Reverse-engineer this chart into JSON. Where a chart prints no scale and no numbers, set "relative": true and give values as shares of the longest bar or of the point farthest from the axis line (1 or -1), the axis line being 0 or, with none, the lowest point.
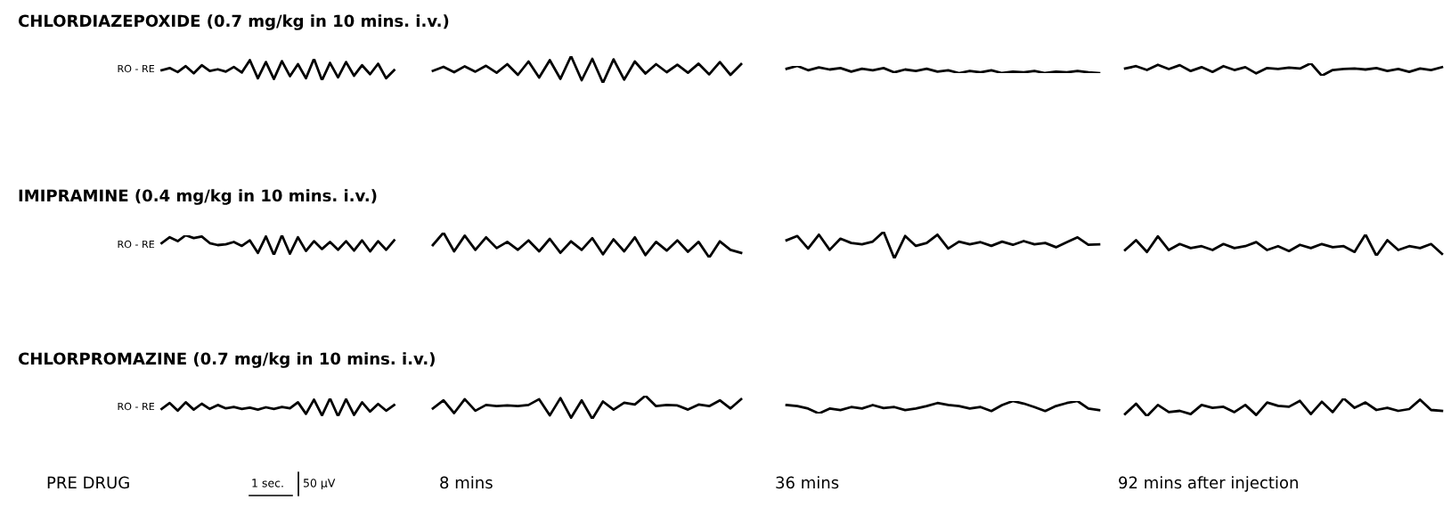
{
  "chart_data": [
    {
      "type": "line",
      "title": "CHLORDIAZEPOXIDE (0.7 mg/kg in 10 mins. i.v.)",
      "relative": true,
      "line_style": "solid",
      "annotations": [
        "RO - RE"
      ],
      "categories": [
        null,
        null,
        null,
        null,
        null,
        null,
        null,
        null,
        null,
        null,
        null,
        null,
        null,
        null,
        null,
        null,
        null,
        null,
        null,
        null,
        null,
        null,
        null,
        null,
        null,
        null,
        null,
        null,
        null,
        null
      ],
      "series": [
        {
          "color": "#000000",
          "values": [
            0.47,
            0.57,
            0.38,
            0.66,
            0.32,
            0.7,
            0.43,
            0.51,
            0.4,
            0.62,
            0.36,
            0.94,
            0.09,
            0.85,
            0.06,
            0.89,
            0.19,
            0.75,
            0.09,
            1.0,
            0.0,
            0.81,
            0.13,
            0.85,
            0.21,
            0.7,
            0.28,
            0.77,
            0.09,
            0.47
          ]
        }
      ]
    },
    {
      "type": "line",
      "relative": true,
      "line_style": "solid",
      "categories": [
        null,
        null,
        null,
        null,
        null,
        null,
        null,
        null,
        null,
        null,
        null,
        null,
        null,
        null,
        null,
        null,
        null,
        null,
        null,
        null,
        null,
        null,
        null,
        null,
        null,
        null,
        null,
        null,
        null,
        null
      ],
      "series": [
        {
          "color": "#000000",
          "values": [
            0.45,
            0.6,
            0.4,
            0.62,
            0.42,
            0.64,
            0.38,
            0.7,
            0.3,
            0.8,
            0.2,
            0.85,
            0.15,
            1.0,
            0.1,
            0.9,
            0.0,
            0.88,
            0.12,
            0.8,
            0.35,
            0.7,
            0.4,
            0.68,
            0.38,
            0.72,
            0.32,
            0.78,
            0.3,
            0.7
          ]
        }
      ]
    },
    {
      "type": "line",
      "relative": true,
      "line_style": "solid",
      "categories": [
        null,
        null,
        null,
        null,
        null,
        null,
        null,
        null,
        null,
        null,
        null,
        null,
        null,
        null,
        null,
        null,
        null,
        null,
        null,
        null,
        null,
        null,
        null,
        null,
        null,
        null,
        null,
        null,
        null,
        null
      ],
      "series": [
        {
          "color": "#000000",
          "values": [
            0.6,
            1.0,
            0.4,
            0.8,
            0.5,
            0.7,
            0.2,
            0.6,
            0.4,
            0.7,
            0.1,
            0.5,
            0.3,
            0.6,
            0.2,
            0.4,
            0.0,
            0.3,
            0.1,
            0.4,
            0.0,
            0.2,
            0.1,
            0.3,
            0.0,
            0.2,
            0.1,
            0.3,
            0.1,
            0.0
          ]
        }
      ]
    },
    {
      "type": "line",
      "relative": true,
      "line_style": "solid",
      "categories": [
        null,
        null,
        null,
        null,
        null,
        null,
        null,
        null,
        null,
        null,
        null,
        null,
        null,
        null,
        null,
        null,
        null,
        null,
        null,
        null,
        null,
        null,
        null,
        null,
        null,
        null,
        null,
        null,
        null,
        null
      ],
      "series": [
        {
          "color": "#000000",
          "values": [
            0.58,
            0.77,
            0.46,
            0.88,
            0.54,
            0.85,
            0.38,
            0.69,
            0.31,
            0.77,
            0.46,
            0.69,
            0.19,
            0.62,
            0.54,
            0.65,
            0.58,
            1.0,
            0.0,
            0.46,
            0.54,
            0.58,
            0.5,
            0.62,
            0.38,
            0.54,
            0.31,
            0.58,
            0.46,
            0.69
          ]
        }
      ]
    },
    {
      "type": "line",
      "title": "IMIPRAMINE (0.4 mg/kg in 10 mins. i.v.)",
      "relative": true,
      "line_style": "solid",
      "annotations": [
        "RO - RE"
      ],
      "categories": [
        null,
        null,
        null,
        null,
        null,
        null,
        null,
        null,
        null,
        null,
        null,
        null,
        null,
        null,
        null,
        null,
        null,
        null,
        null,
        null,
        null,
        null,
        null,
        null,
        null,
        null,
        null,
        null,
        null,
        null
      ],
      "series": [
        {
          "color": "#000000",
          "values": [
            0.6,
            0.9,
            0.7,
            1.0,
            0.86,
            0.94,
            0.6,
            0.5,
            0.54,
            0.66,
            0.46,
            0.74,
            0.1,
            0.94,
            0.0,
            1.0,
            0.06,
            0.9,
            0.2,
            0.7,
            0.3,
            0.66,
            0.26,
            0.7,
            0.22,
            0.74,
            0.18,
            0.7,
            0.26,
            0.74
          ]
        }
      ]
    },
    {
      "type": "line",
      "relative": true,
      "line_style": "solid",
      "categories": [
        null,
        null,
        null,
        null,
        null,
        null,
        null,
        null,
        null,
        null,
        null,
        null,
        null,
        null,
        null,
        null,
        null,
        null,
        null,
        null,
        null,
        null,
        null,
        null,
        null,
        null,
        null,
        null,
        null,
        null
      ],
      "series": [
        {
          "color": "#000000",
          "values": [
            0.5,
            1.0,
            0.25,
            0.88,
            0.31,
            0.81,
            0.38,
            0.63,
            0.31,
            0.69,
            0.25,
            0.75,
            0.19,
            0.65,
            0.31,
            0.78,
            0.13,
            0.73,
            0.25,
            0.81,
            0.1,
            0.63,
            0.28,
            0.69,
            0.23,
            0.63,
            0.0,
            0.65,
            0.31,
            0.19
          ]
        }
      ]
    },
    {
      "type": "line",
      "relative": true,
      "line_style": "solid",
      "categories": [
        null,
        null,
        null,
        null,
        null,
        null,
        null,
        null,
        null,
        null,
        null,
        null,
        null,
        null,
        null,
        null,
        null,
        null,
        null,
        null,
        null,
        null,
        null,
        null,
        null,
        null,
        null,
        null,
        null,
        null
      ],
      "series": [
        {
          "color": "#000000",
          "values": [
            0.68,
            0.84,
            0.37,
            0.89,
            0.32,
            0.74,
            0.58,
            0.53,
            0.63,
            1.0,
            0.0,
            0.84,
            0.47,
            0.58,
            0.89,
            0.37,
            0.63,
            0.53,
            0.61,
            0.47,
            0.63,
            0.51,
            0.65,
            0.53,
            0.58,
            0.42,
            0.61,
            0.79,
            0.51,
            0.53
          ]
        }
      ]
    },
    {
      "type": "line",
      "relative": true,
      "line_style": "solid",
      "categories": [
        null,
        null,
        null,
        null,
        null,
        null,
        null,
        null,
        null,
        null,
        null,
        null,
        null,
        null,
        null,
        null,
        null,
        null,
        null,
        null,
        null,
        null,
        null,
        null,
        null,
        null,
        null,
        null,
        null,
        null
      ],
      "series": [
        {
          "color": "#000000",
          "values": [
            0.27,
            0.73,
            0.18,
            0.91,
            0.27,
            0.55,
            0.36,
            0.45,
            0.27,
            0.55,
            0.36,
            0.45,
            0.64,
            0.27,
            0.45,
            0.22,
            0.51,
            0.36,
            0.55,
            0.4,
            0.45,
            0.18,
            1.0,
            0.0,
            0.73,
            0.27,
            0.45,
            0.36,
            0.55,
            0.09
          ]
        }
      ]
    },
    {
      "type": "line",
      "title": "CHLORPROMAZINE (0.7 mg/kg in 10 mins. i.v.)",
      "xlabel": "PRE DRUG",
      "relative": true,
      "line_style": "solid",
      "annotations": [
        "RO - RE",
        "1 sec.",
        "50 µV"
      ],
      "categories": [
        null,
        null,
        null,
        null,
        null,
        null,
        null,
        null,
        null,
        null,
        null,
        null,
        null,
        null,
        null,
        null,
        null,
        null,
        null,
        null,
        null,
        null,
        null,
        null,
        null,
        null,
        null,
        null,
        null,
        null
      ],
      "series": [
        {
          "color": "#000000",
          "values": [
            0.41,
            0.74,
            0.31,
            0.78,
            0.37,
            0.7,
            0.41,
            0.63,
            0.44,
            0.52,
            0.41,
            0.48,
            0.37,
            0.5,
            0.41,
            0.52,
            0.44,
            0.78,
            0.13,
            0.93,
            0.04,
            1.0,
            0.0,
            0.96,
            0.07,
            0.78,
            0.26,
            0.69,
            0.31,
            0.63
          ]
        }
      ]
    },
    {
      "type": "line",
      "xlabel": "8 mins",
      "relative": true,
      "line_style": "solid",
      "categories": [
        null,
        null,
        null,
        null,
        null,
        null,
        null,
        null,
        null,
        null,
        null,
        null,
        null,
        null,
        null,
        null,
        null,
        null,
        null,
        null,
        null,
        null,
        null,
        null,
        null,
        null,
        null,
        null,
        null,
        null
      ],
      "series": [
        {
          "color": "#000000",
          "values": [
            0.45,
            0.8,
            0.25,
            0.85,
            0.35,
            0.6,
            0.55,
            0.58,
            0.55,
            0.6,
            0.85,
            0.15,
            0.9,
            0.05,
            0.8,
            0.0,
            0.75,
            0.4,
            0.7,
            0.62,
            1.0,
            0.55,
            0.6,
            0.58,
            0.4,
            0.62,
            0.55,
            0.8,
            0.45,
            0.85
          ]
        }
      ]
    },
    {
      "type": "line",
      "xlabel": "36 mins",
      "relative": true,
      "line_style": "solid",
      "categories": [
        null,
        null,
        null,
        null,
        null,
        null,
        null,
        null,
        null,
        null,
        null,
        null,
        null,
        null,
        null,
        null,
        null,
        null,
        null,
        null,
        null,
        null,
        null,
        null,
        null,
        null,
        null,
        null,
        null,
        null
      ],
      "series": [
        {
          "color": "#000000",
          "values": [
            0.68,
            0.6,
            0.4,
            0.0,
            0.4,
            0.28,
            0.52,
            0.4,
            0.68,
            0.44,
            0.52,
            0.28,
            0.4,
            0.6,
            0.84,
            0.68,
            0.6,
            0.4,
            0.52,
            0.2,
            0.68,
            1.0,
            0.8,
            0.52,
            0.2,
            0.6,
            0.84,
            1.0,
            0.4,
            0.28
          ]
        }
      ]
    },
    {
      "type": "line",
      "xlabel": "92 mins after injection",
      "relative": true,
      "line_style": "solid",
      "categories": [
        null,
        null,
        null,
        null,
        null,
        null,
        null,
        null,
        null,
        null,
        null,
        null,
        null,
        null,
        null,
        null,
        null,
        null,
        null,
        null,
        null,
        null,
        null,
        null,
        null,
        null,
        null,
        null,
        null,
        null
      ],
      "series": [
        {
          "color": "#000000",
          "values": [
            0.12,
            0.7,
            0.0,
            0.63,
            0.23,
            0.3,
            0.12,
            0.63,
            0.47,
            0.53,
            0.23,
            0.63,
            0.07,
            0.77,
            0.58,
            0.53,
            0.86,
            0.12,
            0.81,
            0.23,
            1.0,
            0.47,
            0.77,
            0.35,
            0.47,
            0.3,
            0.4,
            0.93,
            0.35,
            0.3
          ]
        }
      ]
    }
  ]
}
